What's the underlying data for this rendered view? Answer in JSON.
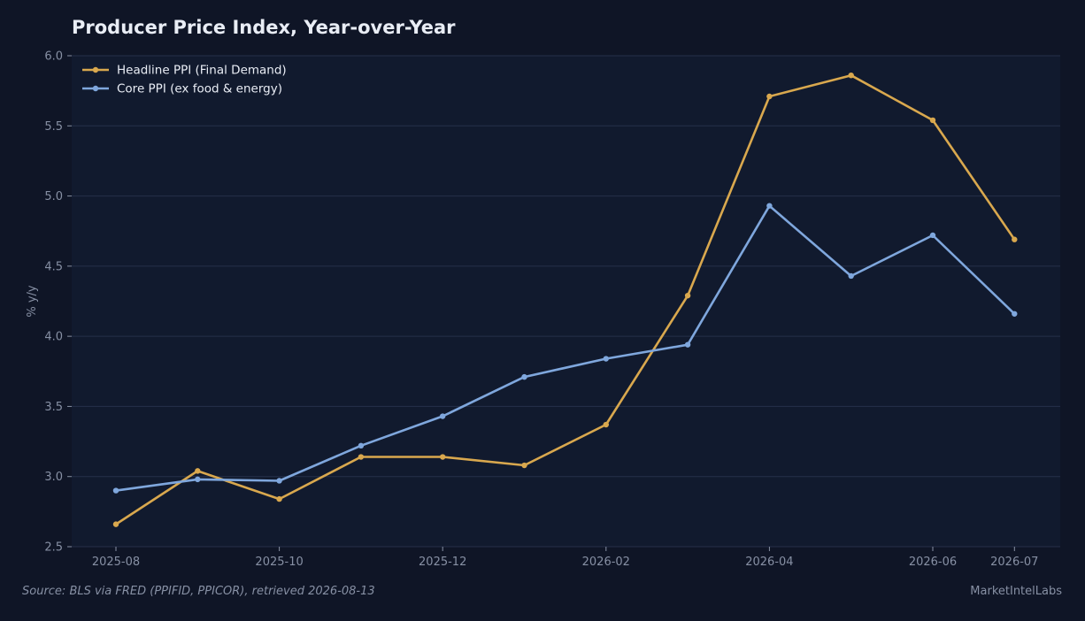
{
  "chart_data": {
    "type": "line",
    "title": "Producer Price Index, Year-over-Year",
    "xlabel": "",
    "ylabel": "% y/y",
    "x": [
      "2025-08",
      "2025-09",
      "2025-10",
      "2025-11",
      "2025-12",
      "2026-01",
      "2026-02",
      "2026-03",
      "2026-04",
      "2026-05",
      "2026-06",
      "2026-07"
    ],
    "x_ticks": [
      "2025-08",
      "2025-10",
      "2025-12",
      "2026-02",
      "2026-04",
      "2026-06",
      "2026-07"
    ],
    "y_ticks": [
      "2.5",
      "3.0",
      "3.5",
      "4.0",
      "4.5",
      "5.0",
      "5.5",
      "6.0"
    ],
    "ylim": [
      2.5,
      6.0
    ],
    "grid": "horizontal",
    "legend_position": "top-left",
    "series": [
      {
        "name": "Headline PPI (Final Demand)",
        "color": "#d9a84e",
        "values": [
          2.66,
          3.04,
          2.84,
          3.14,
          3.14,
          3.08,
          3.37,
          4.29,
          5.71,
          5.86,
          5.54,
          4.69
        ]
      },
      {
        "name": "Core PPI (ex food & energy)",
        "color": "#7fa7dd",
        "values": [
          2.9,
          2.98,
          2.97,
          3.22,
          3.43,
          3.71,
          3.84,
          3.94,
          4.93,
          4.43,
          4.72,
          4.16
        ]
      }
    ]
  },
  "footer": {
    "source": "Source: BLS via FRED (PPIFID, PPICOR), retrieved 2026-08-13",
    "brand": "MarketIntelLabs"
  },
  "colors": {
    "background": "#0f1526",
    "plot_background": "#111a2e",
    "grid": "#26304a",
    "text": "#e9edf5",
    "muted": "#8790a4"
  }
}
